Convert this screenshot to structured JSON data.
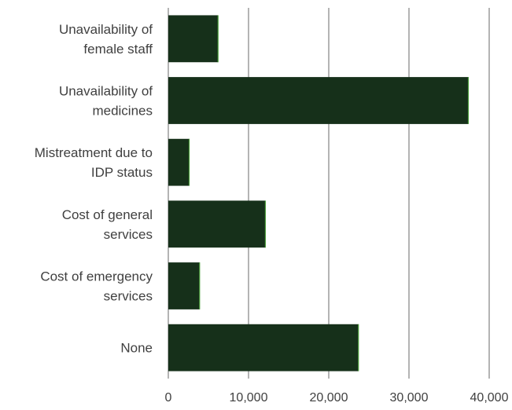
{
  "chart_data": {
    "type": "bar",
    "orientation": "horizontal",
    "title": "",
    "xlabel": "",
    "ylabel": "",
    "categories": [
      [
        "Unavailability of",
        "female staff"
      ],
      [
        "Unavailability of",
        "medicines"
      ],
      [
        "Mistreatment due to",
        "IDP status"
      ],
      [
        "Cost of general",
        "services"
      ],
      [
        "Cost of emergency",
        "services"
      ],
      [
        "None"
      ]
    ],
    "values": [
      6200,
      37400,
      2600,
      12100,
      3900,
      23700
    ],
    "xlim": [
      0,
      40000
    ],
    "ticks": [
      0,
      10000,
      20000,
      30000,
      40000
    ],
    "tick_labels": [
      "0",
      "10,000",
      "20,000",
      "30,000",
      "40,000"
    ],
    "grid": true,
    "legend": "none",
    "colors": {
      "bar": "#16301a",
      "bar_edge": "#4a9c3a",
      "grid": "#8c8c8c",
      "text": "#404040"
    }
  }
}
